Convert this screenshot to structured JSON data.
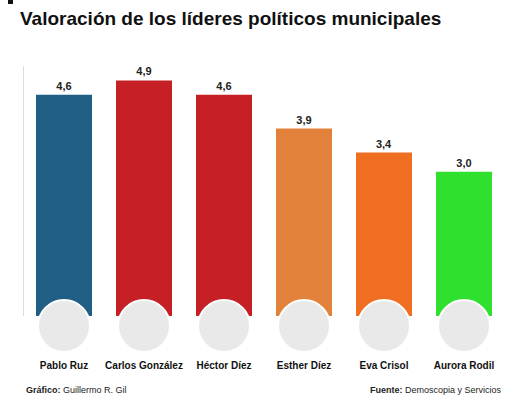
{
  "chart_data": {
    "type": "bar",
    "title": "Valoración de los líderes políticos municipales",
    "categories": [
      "Pablo Ruz",
      "Carlos González",
      "Héctor Díez",
      "Esther Díez",
      "Eva Crisol",
      "Aurora Rodil"
    ],
    "values": [
      4.6,
      4.9,
      4.6,
      3.9,
      3.4,
      3.0
    ],
    "value_labels": [
      "4,6",
      "4,9",
      "4,6",
      "3,9",
      "3,4",
      "3,0"
    ],
    "colors": [
      "#1f5f86",
      "#c42026",
      "#c42026",
      "#e2823a",
      "#f06e22",
      "#2fe02f"
    ],
    "ylim": [
      0,
      5.2
    ],
    "yticks": [],
    "grid": false,
    "data_labels": true,
    "tick_labels": "x",
    "annotations": [
      "Gráfico: Guillermo R. Gil",
      "Fuente: Demoscopia y Servicios"
    ]
  }
}
